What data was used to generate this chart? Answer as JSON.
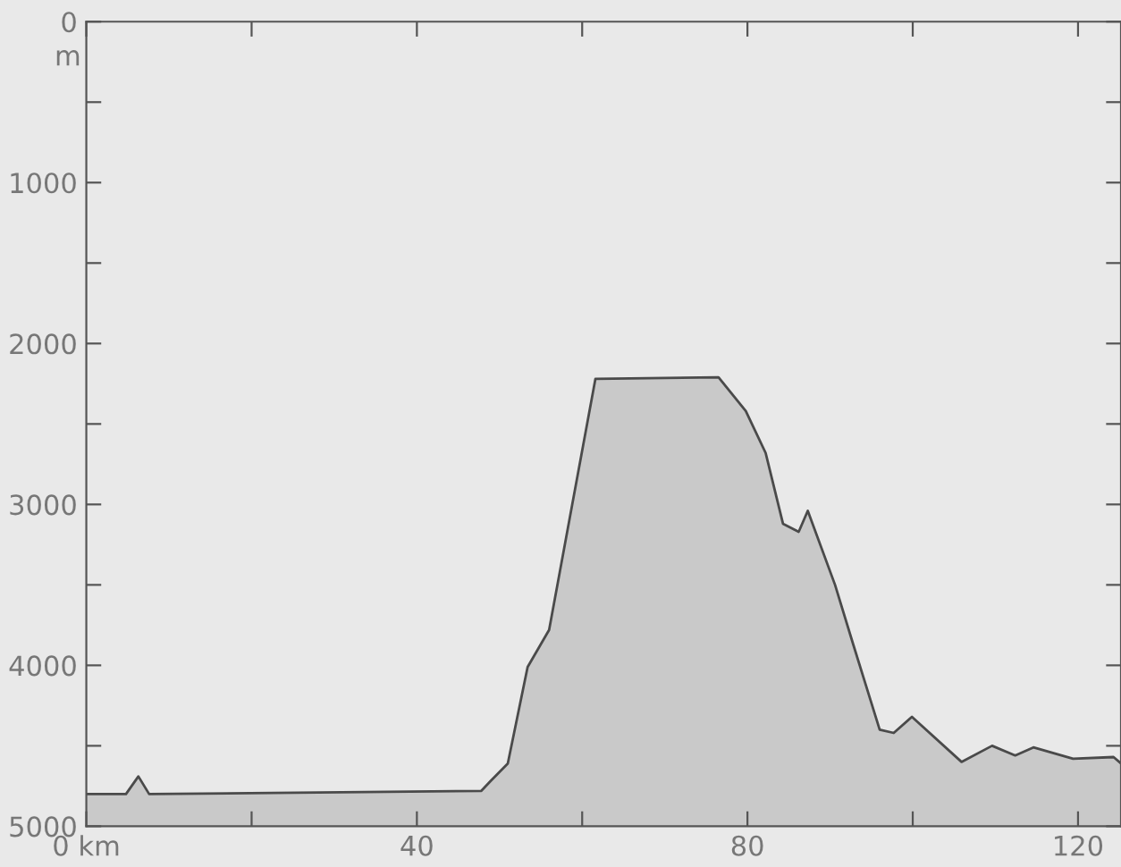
{
  "chart_data": {
    "type": "line",
    "ylabel": "m",
    "x": [
      0,
      4.8,
      6.3,
      7.6,
      47.8,
      48.9,
      51,
      53.4,
      56,
      58.8,
      61.6,
      76.5,
      79.8,
      82.2,
      84.3,
      86.2,
      87.3,
      90.6,
      92.8,
      96,
      97.7,
      99.9,
      105.9,
      109.6,
      112.4,
      114.6,
      119.4,
      124.3,
      125.2
    ],
    "series": [
      {
        "color": "#4a4a4a",
        "values": [
          4800,
          4800,
          4690,
          4800,
          4780,
          4720,
          4610,
          4010,
          3780,
          3000,
          2220,
          2210,
          2420,
          2680,
          3120,
          3170,
          3040,
          3500,
          3870,
          4400,
          4420,
          4320,
          4600,
          4500,
          4560,
          4510,
          4580,
          4570,
          4610
        ]
      }
    ],
    "xlim": [
      0,
      125.2
    ],
    "ylim": [
      5000,
      0
    ],
    "xticks": [
      {
        "value": 0,
        "label": "0 km"
      },
      {
        "value": 20,
        "label": null
      },
      40,
      {
        "value": 60,
        "label": null
      },
      80,
      {
        "value": 100,
        "label": null
      },
      120
    ],
    "yticks": [
      0,
      {
        "value": 500,
        "label": null
      },
      1000,
      {
        "value": 1500,
        "label": null
      },
      2000,
      {
        "value": 2500,
        "label": null
      },
      3000,
      {
        "value": 3500,
        "label": null
      },
      4000,
      {
        "value": 4500,
        "label": null
      },
      5000
    ],
    "grid": false,
    "legend": false
  }
}
